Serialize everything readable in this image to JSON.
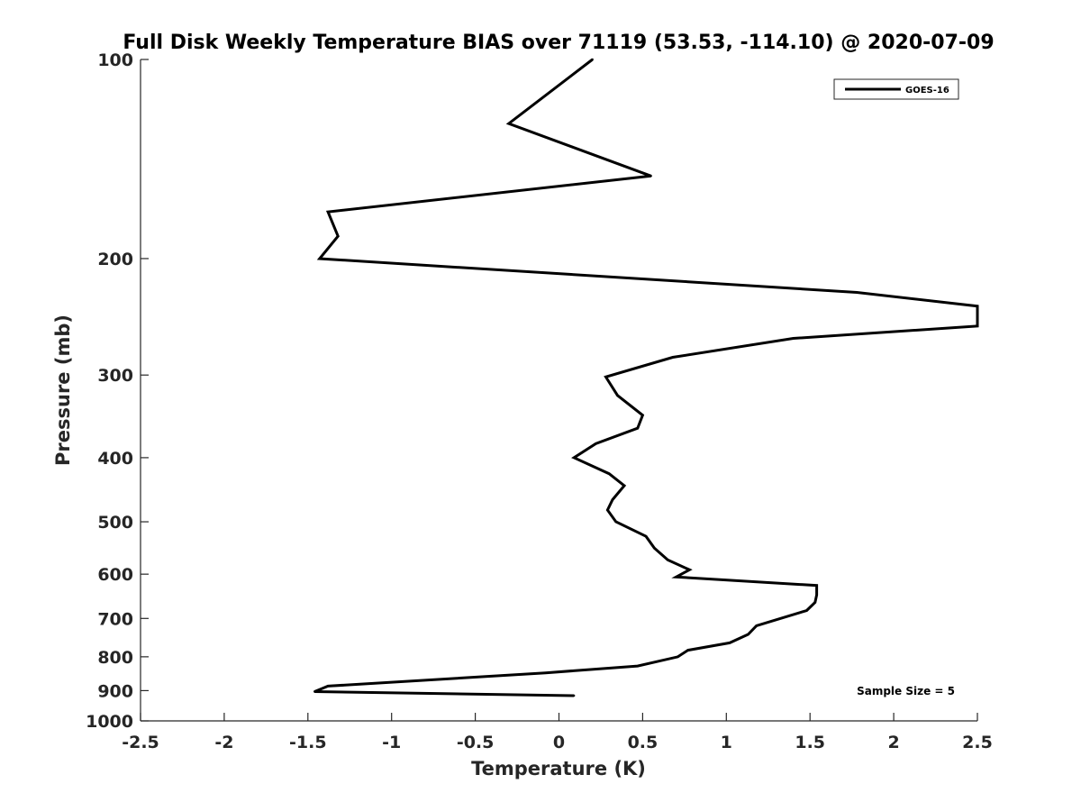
{
  "chart_data": {
    "type": "line",
    "title": "Full Disk Weekly Temperature BIAS over 71119 (53.53, -114.10) @ 2020-07-09",
    "xlabel": "Temperature (K)",
    "ylabel": "Pressure (mb)",
    "xlim": [
      -2.5,
      2.5
    ],
    "ylim": [
      100,
      1000
    ],
    "y_scale": "log",
    "y_reversed": true,
    "xticks": [
      -2.5,
      -2,
      -1.5,
      -1,
      -0.5,
      0,
      0.5,
      1,
      1.5,
      2,
      2.5
    ],
    "xtick_labels": [
      "-2.5",
      "-2",
      "-1.5",
      "-1",
      "-0.5",
      "0",
      "0.5",
      "1",
      "1.5",
      "2",
      "2.5"
    ],
    "yticks": [
      100,
      200,
      300,
      400,
      500,
      600,
      700,
      800,
      900,
      1000
    ],
    "ytick_labels": [
      "100",
      "200",
      "300",
      "400",
      "500",
      "600",
      "700",
      "800",
      "900",
      "1000"
    ],
    "grid": false,
    "legend_position": "top-right",
    "series": [
      {
        "name": "GOES-16",
        "color": "#000000",
        "points": [
          [
            0.2,
            100
          ],
          [
            -0.3,
            125
          ],
          [
            0.55,
            150
          ],
          [
            -1.38,
            170
          ],
          [
            -1.32,
            185
          ],
          [
            -1.43,
            200
          ],
          [
            1.78,
            225
          ],
          [
            2.5,
            236
          ],
          [
            2.5,
            253
          ],
          [
            1.4,
            264
          ],
          [
            0.68,
            282
          ],
          [
            0.28,
            302
          ],
          [
            0.35,
            322
          ],
          [
            0.5,
            345
          ],
          [
            0.47,
            361
          ],
          [
            0.22,
            381
          ],
          [
            0.09,
            400
          ],
          [
            0.3,
            423
          ],
          [
            0.39,
            441
          ],
          [
            0.32,
            463
          ],
          [
            0.29,
            480
          ],
          [
            0.34,
            500
          ],
          [
            0.52,
            526
          ],
          [
            0.57,
            548
          ],
          [
            0.65,
            571
          ],
          [
            0.78,
            591
          ],
          [
            0.7,
            606
          ],
          [
            1.54,
            624
          ],
          [
            1.54,
            645
          ],
          [
            1.53,
            662
          ],
          [
            1.48,
            681
          ],
          [
            1.18,
            718
          ],
          [
            1.13,
            740
          ],
          [
            1.02,
            762
          ],
          [
            0.77,
            782
          ],
          [
            0.71,
            800
          ],
          [
            0.47,
            826
          ],
          [
            -0.08,
            846
          ],
          [
            -1.38,
            886
          ],
          [
            -1.46,
            903
          ],
          [
            0.09,
            916
          ]
        ]
      }
    ],
    "annotations": [
      {
        "text": "Sample Size = 5",
        "position": "bottom-right"
      }
    ]
  }
}
